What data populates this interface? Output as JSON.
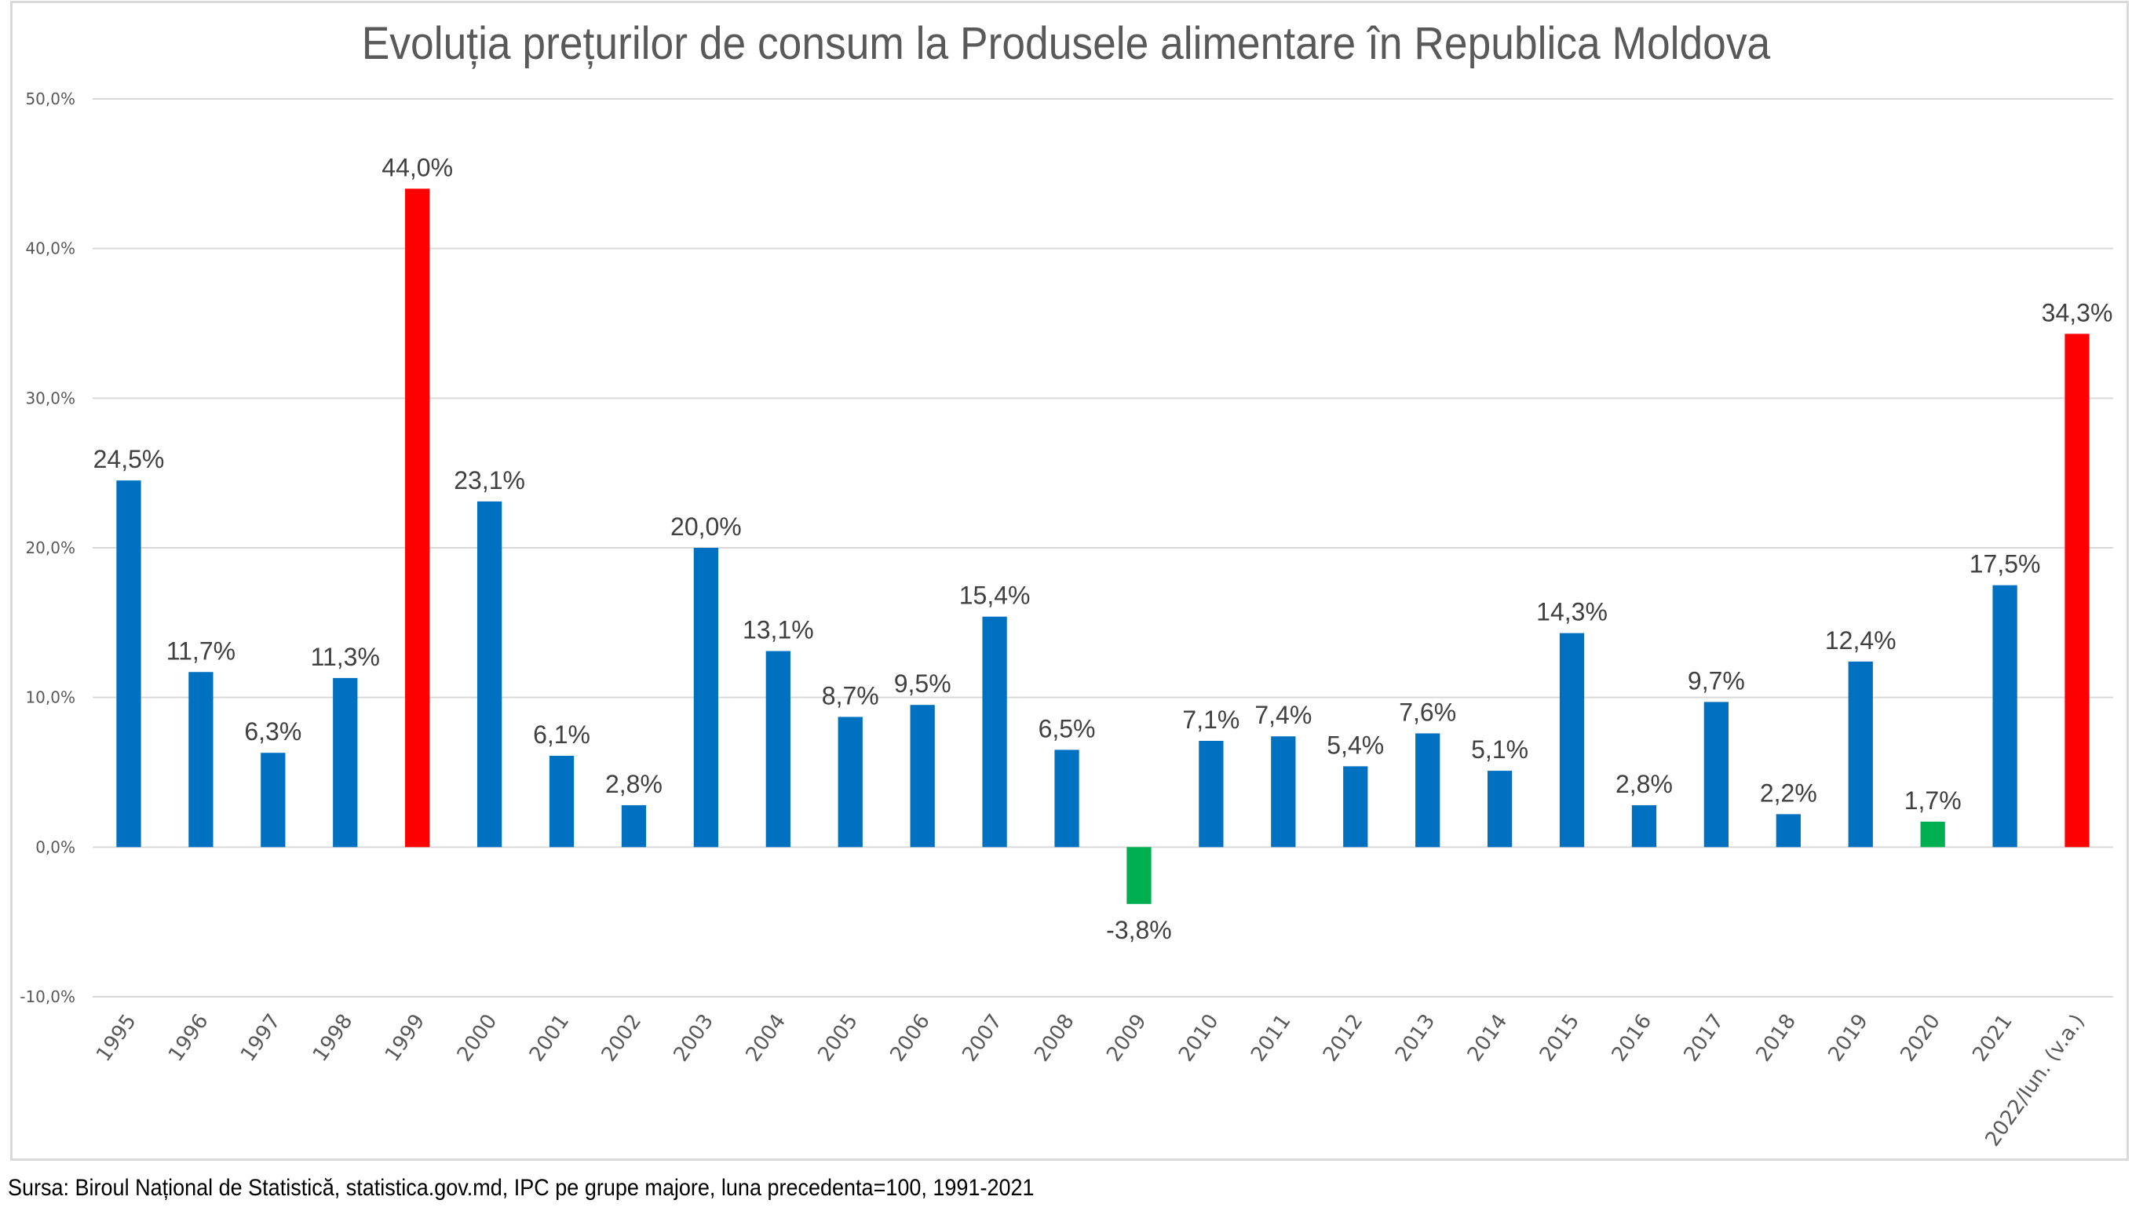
{
  "chart_data": {
    "type": "bar",
    "title": "Evoluția prețurilor de consum la Produsele alimentare în Republica Moldova",
    "xlabel": "",
    "ylabel": "",
    "ylim": [
      -10,
      50
    ],
    "yticks": [
      50,
      40,
      30,
      20,
      10,
      0,
      -10
    ],
    "ytick_labels": [
      "50,0%",
      "40,0%",
      "30,0%",
      "20,0%",
      "10,0%",
      "0,0%",
      "-10,0%"
    ],
    "grid": true,
    "legend": "none",
    "categories": [
      "1995",
      "1996",
      "1997",
      "1998",
      "1999",
      "2000",
      "2001",
      "2002",
      "2003",
      "2004",
      "2005",
      "2006",
      "2007",
      "2008",
      "2009",
      "2010",
      "2011",
      "2012",
      "2013",
      "2014",
      "2015",
      "2016",
      "2017",
      "2018",
      "2019",
      "2020",
      "2021",
      "2022/Iun. (v.a.)"
    ],
    "values": [
      24.5,
      11.7,
      6.3,
      11.3,
      44.0,
      23.1,
      6.1,
      2.8,
      20.0,
      13.1,
      8.7,
      9.5,
      15.4,
      6.5,
      -3.8,
      7.1,
      7.4,
      5.4,
      7.6,
      5.1,
      14.3,
      2.8,
      9.7,
      2.2,
      12.4,
      1.7,
      17.5,
      34.3
    ],
    "data_labels": [
      "24,5%",
      "11,7%",
      "6,3%",
      "11,3%",
      "44,0%",
      "23,1%",
      "6,1%",
      "2,8%",
      "20,0%",
      "13,1%",
      "8,7%",
      "9,5%",
      "15,4%",
      "6,5%",
      "-3,8%",
      "7,1%",
      "7,4%",
      "5,4%",
      "7,6%",
      "5,1%",
      "14,3%",
      "2,8%",
      "9,7%",
      "2,2%",
      "12,4%",
      "1,7%",
      "17,5%",
      "34,3%"
    ],
    "bar_colors": [
      "blue",
      "blue",
      "blue",
      "blue",
      "red",
      "blue",
      "blue",
      "blue",
      "blue",
      "blue",
      "blue",
      "blue",
      "blue",
      "blue",
      "green",
      "blue",
      "blue",
      "blue",
      "blue",
      "blue",
      "blue",
      "blue",
      "blue",
      "blue",
      "blue",
      "green",
      "blue",
      "red"
    ],
    "colors": {
      "blue": "#0070C0",
      "red": "#FF0000",
      "green": "#00B050",
      "grid": "#D9D9D9"
    }
  },
  "footer": {
    "source": "Sursa: Biroul Național de Statistică, statistica.gov.md,  IPC pe grupe majore, luna precedenta=100, 1991-2021"
  }
}
